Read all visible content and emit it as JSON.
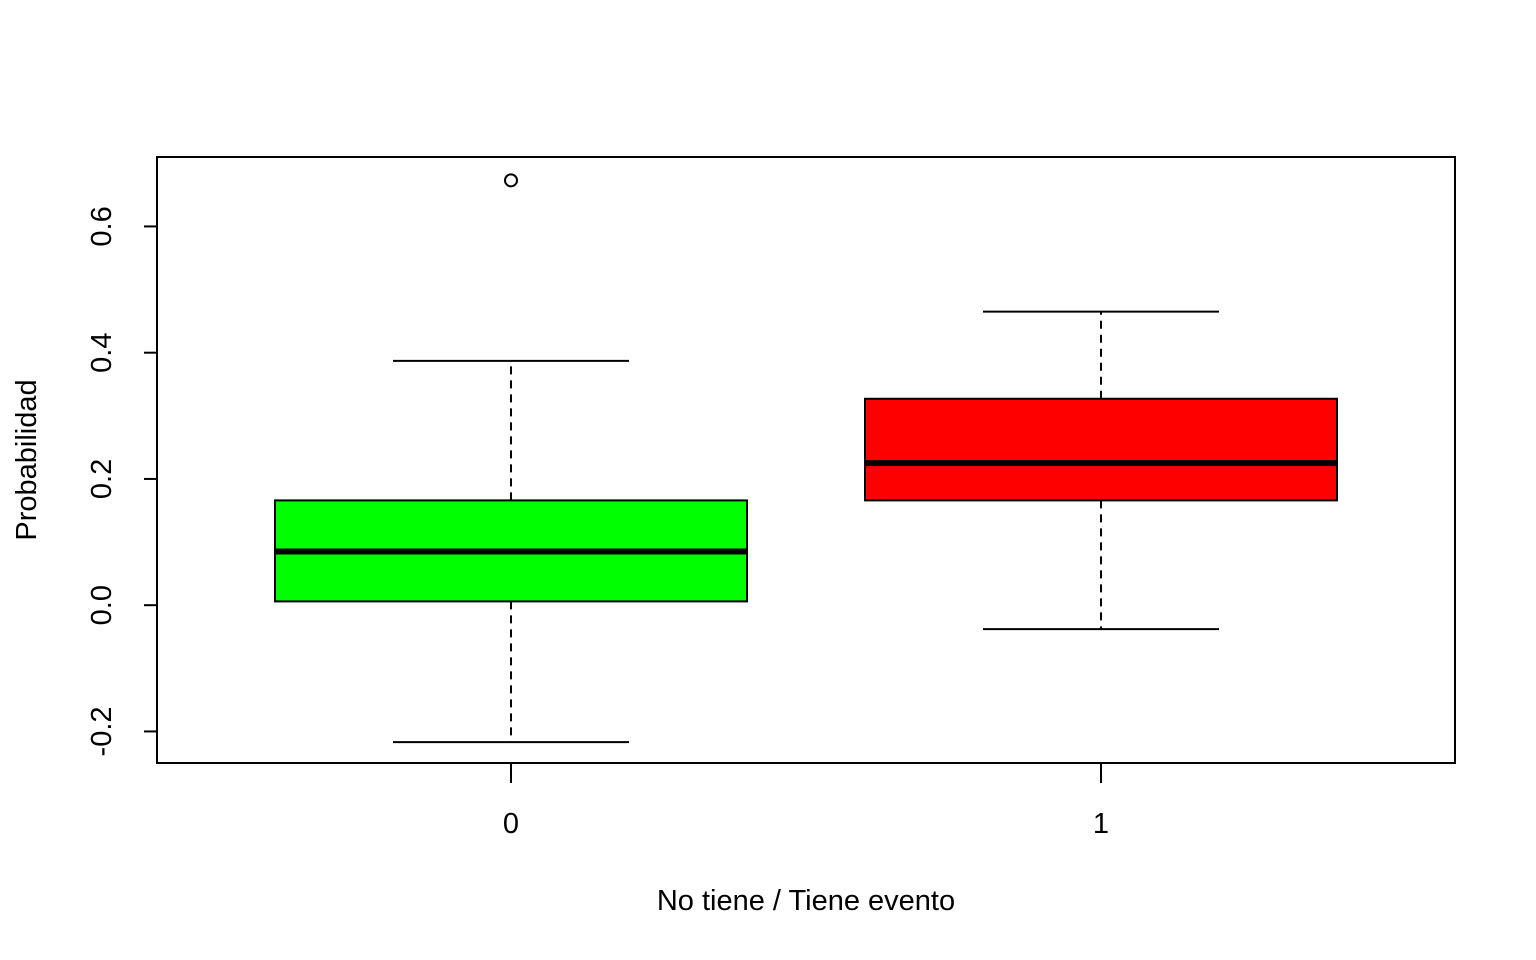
{
  "chart_data": {
    "type": "boxplot",
    "title": "",
    "xlabel": "No tiene / Tiene evento",
    "ylabel": "Probabilidad",
    "ylim": [
      -0.25,
      0.71
    ],
    "y_ticks": [
      -0.2,
      0.0,
      0.2,
      0.4,
      0.6
    ],
    "y_tick_labels": [
      "-0.2",
      "0.0",
      "0.2",
      "0.4",
      "0.6"
    ],
    "categories": [
      "0",
      "1"
    ],
    "grid": false,
    "legend": "none",
    "boxes": [
      {
        "category": "0",
        "color": "#00ff00",
        "whisker_low": -0.217,
        "q1": 0.006,
        "median": 0.085,
        "q3": 0.166,
        "whisker_high": 0.387,
        "outliers": [
          0.673
        ]
      },
      {
        "category": "1",
        "color": "#ff0000",
        "whisker_low": -0.038,
        "q1": 0.166,
        "median": 0.225,
        "q3": 0.327,
        "whisker_high": 0.465,
        "outliers": []
      }
    ]
  }
}
